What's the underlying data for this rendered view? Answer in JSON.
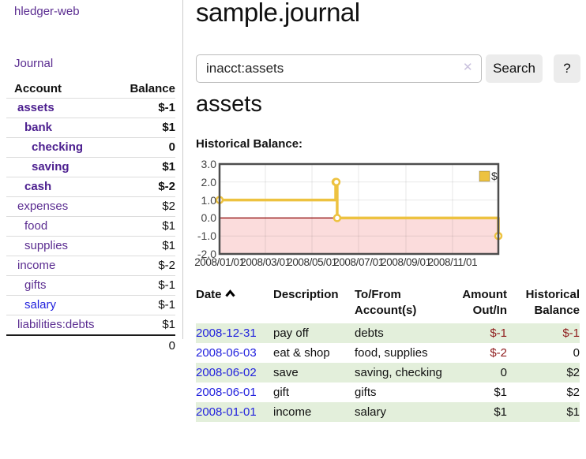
{
  "app": {
    "brand": "hledger-web",
    "nav_journal": "Journal"
  },
  "header": {
    "title": "sample.journal"
  },
  "search": {
    "value": "inacct:assets",
    "clear_icon": "✕",
    "button_label": "Search",
    "help_label": "?"
  },
  "account_page": {
    "heading": "assets",
    "chart_label": "Historical Balance:"
  },
  "sidebar": {
    "headers": {
      "account": "Account",
      "balance": "Balance"
    },
    "accounts": [
      {
        "name": "assets",
        "depth": 1,
        "bold": true,
        "blue": false,
        "balance": "$-1",
        "balance_class": "bold neg"
      },
      {
        "name": "bank",
        "depth": 2,
        "bold": true,
        "blue": false,
        "balance": "$1",
        "balance_class": "bold"
      },
      {
        "name": "checking",
        "depth": 3,
        "bold": true,
        "blue": false,
        "balance": "0",
        "balance_class": "bold"
      },
      {
        "name": "saving",
        "depth": 3,
        "bold": true,
        "blue": false,
        "balance": "$1",
        "balance_class": "bold"
      },
      {
        "name": "cash",
        "depth": 2,
        "bold": true,
        "blue": false,
        "balance": "$-2",
        "balance_class": "bold neg"
      },
      {
        "name": "expenses",
        "depth": 1,
        "bold": false,
        "blue": false,
        "balance": "$2",
        "balance_class": ""
      },
      {
        "name": "food",
        "depth": 2,
        "bold": false,
        "blue": false,
        "balance": "$1",
        "balance_class": ""
      },
      {
        "name": "supplies",
        "depth": 2,
        "bold": false,
        "blue": false,
        "balance": "$1",
        "balance_class": ""
      },
      {
        "name": "income",
        "depth": 1,
        "bold": false,
        "blue": false,
        "balance": "$-2",
        "balance_class": "neg-muted"
      },
      {
        "name": "gifts",
        "depth": 2,
        "bold": false,
        "blue": false,
        "balance": "$-1",
        "balance_class": "neg-muted"
      },
      {
        "name": "salary",
        "depth": 2,
        "bold": false,
        "blue": true,
        "balance": "$-1",
        "balance_class": "neg-muted"
      },
      {
        "name": "liabilities:debts",
        "depth": 1,
        "bold": false,
        "blue": false,
        "balance": "$1",
        "balance_class": ""
      }
    ],
    "total": "0"
  },
  "chart_data": {
    "type": "line",
    "step": true,
    "title": "Historical Balance:",
    "series": [
      {
        "name": "$",
        "color": "#EDC240",
        "points": [
          [
            "2008-01-01",
            1
          ],
          [
            "2008-06-01",
            2
          ],
          [
            "2008-06-02",
            2
          ],
          [
            "2008-06-03",
            0
          ],
          [
            "2008-12-31",
            -1
          ]
        ]
      }
    ],
    "xlim": [
      "2008-01-01",
      "2008-12-31"
    ],
    "ylim": [
      -2,
      3
    ],
    "yticks": [
      3.0,
      2.0,
      1.0,
      0.0,
      -1.0,
      -2.0
    ],
    "ytick_labels": [
      "3.0",
      "2.0",
      "1.0",
      "0.0",
      "-1.0",
      "-2.0"
    ],
    "xticks": [
      "2008-01-01",
      "2008-03-01",
      "2008-05-01",
      "2008-07-01",
      "2008-09-01",
      "2008-11-01"
    ],
    "xtick_labels": [
      "2008/01/01",
      "2008/03/01",
      "2008/05/01",
      "2008/07/01",
      "2008/09/01",
      "2008/11/01"
    ],
    "legend": {
      "label": "$",
      "position": "top-right"
    },
    "grid": true,
    "negative_region_fill": "#fbdcdc",
    "zero_line_color": "#8b0000",
    "border_color": "#4d4d4d",
    "grid_color": "rgba(0,0,0,0.09)"
  },
  "register": {
    "headers": {
      "date": "Date",
      "description": "Description",
      "accounts": "To/From Account(s)",
      "amount": "Amount Out/In",
      "balance": "Historical Balance"
    },
    "rows": [
      {
        "date": "2008-12-31",
        "description": "pay off",
        "accounts": "debts",
        "amount": "$-1",
        "amount_class": "neg",
        "balance": "$-1",
        "balance_class": "neg"
      },
      {
        "date": "2008-06-03",
        "description": "eat & shop",
        "accounts": "food, supplies",
        "amount": "$-2",
        "amount_class": "neg",
        "balance": "0",
        "balance_class": ""
      },
      {
        "date": "2008-06-02",
        "description": "save",
        "accounts": "saving, checking",
        "amount": "0",
        "amount_class": "",
        "balance": "$2",
        "balance_class": ""
      },
      {
        "date": "2008-06-01",
        "description": "gift",
        "accounts": "gifts",
        "amount": "$1",
        "amount_class": "",
        "balance": "$2",
        "balance_class": ""
      },
      {
        "date": "2008-01-01",
        "description": "income",
        "accounts": "salary",
        "amount": "$1",
        "amount_class": "",
        "balance": "$1",
        "balance_class": ""
      }
    ]
  },
  "colors": {
    "accent_gold": "#EDC240",
    "link_purple": "#5b2d91",
    "link_blue": "#2222dd",
    "negative_strong": "#8f1d1d",
    "negative_muted": "#b86e6e",
    "row_stripe_green": "#e3efdb",
    "chart_negative_fill": "#fbdcdc",
    "chart_zero_line": "#8b0000"
  }
}
